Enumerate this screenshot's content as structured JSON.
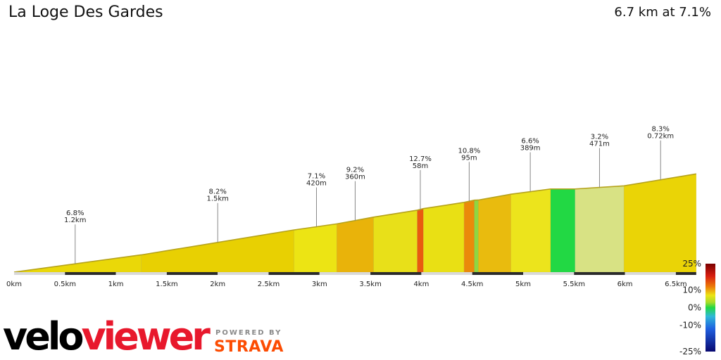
{
  "header": {
    "title": "La Loge Des Gardes",
    "summary": "6.7 km at 7.1%"
  },
  "branding": {
    "logo_part1": "velo",
    "logo_part2": "viewer",
    "powered_by": "POWERED BY",
    "strava": "STRAVA"
  },
  "colors": {
    "outline": "#b5a21b",
    "axis_dark": "#2b2b2b",
    "axis_light": "#d9d9d9"
  },
  "chart_data": {
    "type": "area",
    "title": "La Loge Des Gardes",
    "xlabel": "",
    "ylabel": "",
    "x_unit": "km",
    "xlim": [
      0,
      6.7
    ],
    "x_ticks": [
      "0km",
      "0.5km",
      "1km",
      "1.5km",
      "2km",
      "2.5km",
      "3km",
      "3.5km",
      "4km",
      "4.5km",
      "5km",
      "5.5km",
      "6km",
      "6.5km"
    ],
    "segments": [
      {
        "start_km": 0.0,
        "end_km": 1.25,
        "gradient": 6.8,
        "color": "#ead808"
      },
      {
        "start_km": 1.25,
        "end_km": 2.75,
        "gradient": 8.2,
        "color": "#e8d002"
      },
      {
        "start_km": 2.75,
        "end_km": 3.17,
        "gradient": 7.1,
        "color": "#ece414"
      },
      {
        "start_km": 3.17,
        "end_km": 3.53,
        "gradient": 9.2,
        "color": "#e9b30a"
      },
      {
        "start_km": 3.53,
        "end_km": 3.96,
        "gradient": 8.0,
        "color": "#e8e019"
      },
      {
        "start_km": 3.96,
        "end_km": 4.02,
        "gradient": 12.7,
        "color": "#e95a10"
      },
      {
        "start_km": 4.02,
        "end_km": 4.42,
        "gradient": 7.7,
        "color": "#e9e014"
      },
      {
        "start_km": 4.42,
        "end_km": 4.52,
        "gradient": 10.8,
        "color": "#ea8a0a"
      },
      {
        "start_km": 4.52,
        "end_km": 4.56,
        "gradient": 2.0,
        "color": "#8ed642"
      },
      {
        "start_km": 4.56,
        "end_km": 4.88,
        "gradient": 9.0,
        "color": "#e9bb0e"
      },
      {
        "start_km": 4.88,
        "end_km": 5.27,
        "gradient": 6.6,
        "color": "#ece41c"
      },
      {
        "start_km": 5.27,
        "end_km": 5.51,
        "gradient": 0.0,
        "color": "#22d844"
      },
      {
        "start_km": 5.51,
        "end_km": 5.99,
        "gradient": 3.2,
        "color": "#d8e284"
      },
      {
        "start_km": 5.99,
        "end_km": 6.7,
        "gradient": 8.3,
        "color": "#ead406"
      }
    ],
    "annotations": [
      {
        "x_km": 0.6,
        "gradient": "6.8%",
        "length": "1.2km"
      },
      {
        "x_km": 2.0,
        "gradient": "8.2%",
        "length": "1.5km"
      },
      {
        "x_km": 2.97,
        "gradient": "7.1%",
        "length": "420m"
      },
      {
        "x_km": 3.35,
        "gradient": "9.2%",
        "length": "360m"
      },
      {
        "x_km": 3.99,
        "gradient": "12.7%",
        "length": "58m"
      },
      {
        "x_km": 4.47,
        "gradient": "10.8%",
        "length": "95m"
      },
      {
        "x_km": 5.07,
        "gradient": "6.6%",
        "length": "389m"
      },
      {
        "x_km": 5.75,
        "gradient": "3.2%",
        "length": "471m"
      },
      {
        "x_km": 6.35,
        "gradient": "8.3%",
        "length": "0.72km"
      }
    ],
    "legend": {
      "position": "bottom-right",
      "labels": [
        "25%",
        "10%",
        "0%",
        "-10%",
        "-25%"
      ],
      "values": [
        25,
        10,
        0,
        -10,
        -25
      ],
      "stops": [
        {
          "value": 25,
          "color": "#7a0000"
        },
        {
          "value": 18,
          "color": "#d81e10"
        },
        {
          "value": 12,
          "color": "#ec7a08"
        },
        {
          "value": 7,
          "color": "#ece414"
        },
        {
          "value": 3,
          "color": "#a8dc2a"
        },
        {
          "value": 0,
          "color": "#22d844"
        },
        {
          "value": -5,
          "color": "#30b8d8"
        },
        {
          "value": -12,
          "color": "#2060e0"
        },
        {
          "value": -25,
          "color": "#080870"
        }
      ]
    }
  }
}
